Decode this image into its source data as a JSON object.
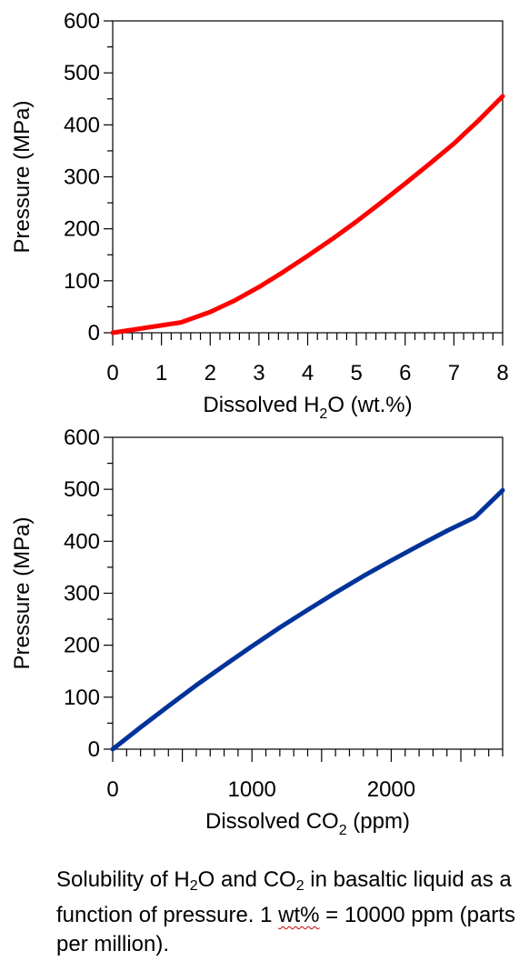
{
  "chart_data": [
    {
      "type": "line",
      "ylabel": "Pressure (MPa)",
      "xlabel_parts": {
        "before": "Dissolved H",
        "sub": "2",
        "after": "O (wt.%)"
      },
      "xlim": [
        0,
        8
      ],
      "ylim": [
        0,
        600
      ],
      "x_ticks": [
        0,
        1,
        2,
        3,
        4,
        5,
        6,
        7,
        8
      ],
      "x_tick_labels": [
        "0",
        "1",
        "2",
        "3",
        "4",
        "5",
        "6",
        "7",
        "8"
      ],
      "x_minor_step": 0.2,
      "y_ticks": [
        0,
        100,
        200,
        300,
        400,
        500,
        600
      ],
      "y_tick_labels": [
        "0",
        "100",
        "200",
        "300",
        "400",
        "500",
        "600"
      ],
      "y_minor_step": 50,
      "grid": false,
      "series": [
        {
          "color": "#ff0000",
          "x": [
            0,
            1.4,
            2.0,
            2.5,
            3.0,
            3.5,
            4.0,
            4.5,
            5.0,
            5.5,
            6.0,
            6.5,
            7.0,
            7.5,
            8.0
          ],
          "y": [
            0,
            20,
            40,
            62,
            88,
            117,
            148,
            180,
            214,
            250,
            287,
            325,
            364,
            408,
            455
          ]
        }
      ]
    },
    {
      "type": "line",
      "ylabel": "Pressure (MPa)",
      "xlabel_parts": {
        "before": "Dissolved CO",
        "sub": "2",
        "after": " (ppm)"
      },
      "xlim": [
        0,
        2800
      ],
      "ylim": [
        0,
        600
      ],
      "x_ticks": [
        0,
        1000,
        2000
      ],
      "x_tick_labels": [
        "0",
        "1000",
        "2000"
      ],
      "x_major_step": 500,
      "x_minor_step": 100,
      "y_ticks": [
        0,
        100,
        200,
        300,
        400,
        500,
        600
      ],
      "y_tick_labels": [
        "0",
        "100",
        "200",
        "300",
        "400",
        "500",
        "600"
      ],
      "y_minor_step": 50,
      "grid": false,
      "series": [
        {
          "color": "#003399",
          "x": [
            0,
            200,
            400,
            600,
            800,
            1000,
            1200,
            1400,
            1600,
            1800,
            2000,
            2200,
            2400,
            2600,
            2800
          ],
          "y": [
            0,
            42,
            83,
            123,
            161,
            198,
            234,
            268,
            301,
            333,
            363,
            392,
            420,
            446,
            498
          ]
        }
      ]
    }
  ],
  "caption": {
    "p1": "Solubility of H",
    "s1": "2",
    "p2": "O and CO",
    "s2": "2",
    "p3": " in basaltic liquid as a function of pressure. 1 ",
    "p4": "wt%",
    "p5": " = 10000 ppm (parts per million)."
  }
}
